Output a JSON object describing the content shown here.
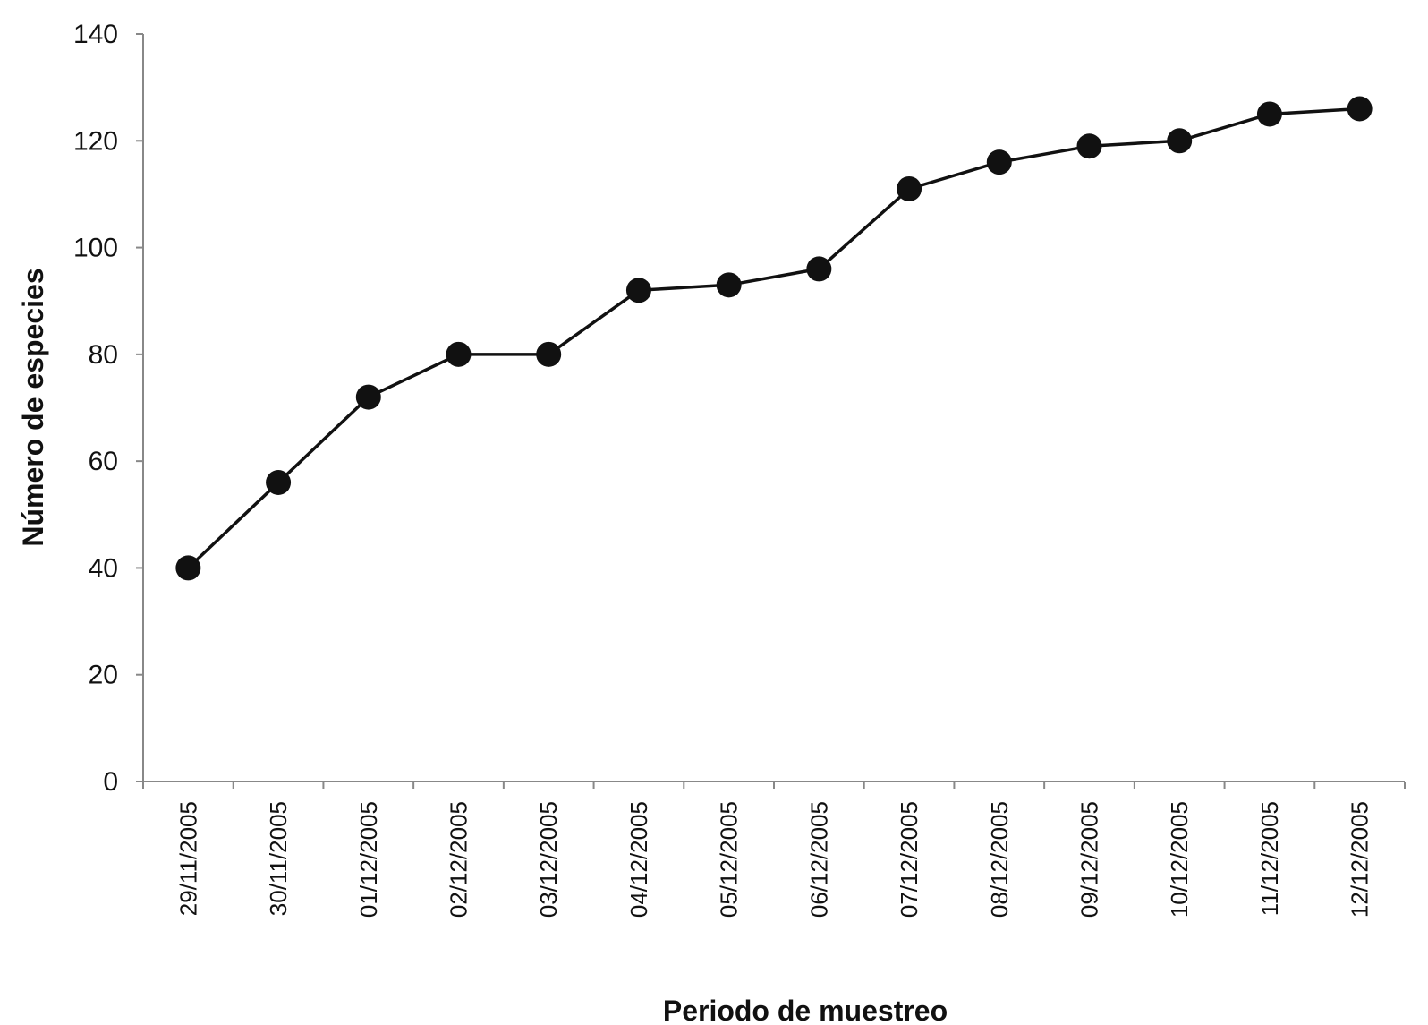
{
  "chart_data": {
    "type": "line",
    "title": "",
    "xlabel": "Periodo de muestreo",
    "ylabel": "Número de especies",
    "categories": [
      "29/11/2005",
      "30/11/2005",
      "01/12/2005",
      "02/12/2005",
      "03/12/2005",
      "04/12/2005",
      "05/12/2005",
      "06/12/2005",
      "07/12/2005",
      "08/12/2005",
      "09/12/2005",
      "10/12/2005",
      "11/12/2005",
      "12/12/2005"
    ],
    "series": [
      {
        "values": [
          40,
          56,
          72,
          80,
          80,
          92,
          93,
          96,
          111,
          116,
          119,
          120,
          125,
          126
        ]
      }
    ],
    "yticks": [
      "0",
      "20",
      "40",
      "60",
      "80",
      "100",
      "120",
      "140"
    ],
    "ylim": [
      0,
      140
    ],
    "grid": false,
    "legend": "none",
    "colors": {
      "line": "#111111",
      "marker": "#111111",
      "axis": "#888888"
    }
  }
}
